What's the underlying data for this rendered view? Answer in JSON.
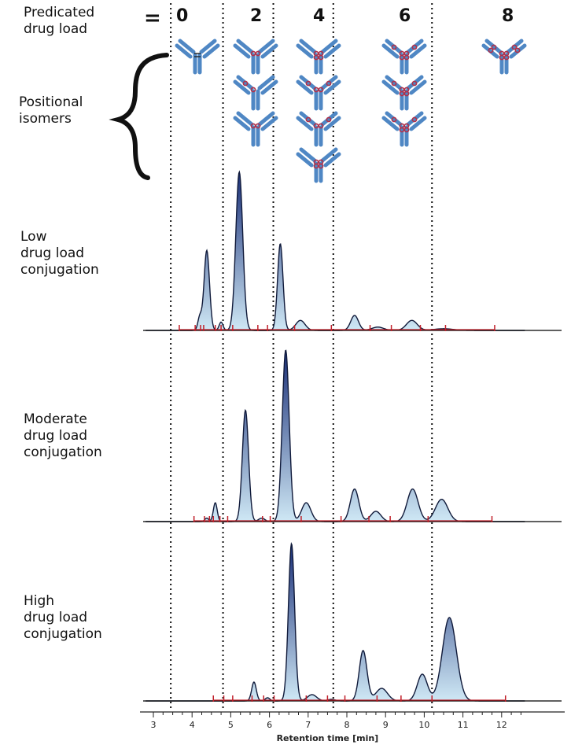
{
  "header": {
    "predicated_label": "Predicated\ndrug load",
    "equals": "=",
    "drug_loads": [
      "0",
      "2",
      "4",
      "6",
      "8"
    ]
  },
  "positional_label": "Positional\nisomers",
  "isomer_counts": [
    1,
    3,
    4,
    3,
    1
  ],
  "colors": {
    "antibody": "#4f87c4",
    "drug_linker": "#b0304a",
    "peak_fill_dark": "#1a2f78",
    "peak_fill_light": "#cfe8f5",
    "integration_marks": "#c0202a",
    "baseline": "#000000"
  },
  "chart_data": {
    "type": "area",
    "xlabel": "Retention time [min]",
    "xlim": [
      2.8,
      12.6
    ],
    "ticks": [
      "3",
      "4",
      "5",
      "6",
      "7",
      "8",
      "9",
      "10",
      "11",
      "12"
    ],
    "dar_boundaries": [
      3.45,
      4.8,
      6.1,
      7.65,
      10.2
    ],
    "panels": [
      {
        "label": "Low\ndrug load\nconjugation",
        "peaks": [
          {
            "x": 4.2,
            "height": 0.08,
            "width": 0.05
          },
          {
            "x": 4.38,
            "height": 0.48,
            "width": 0.07
          },
          {
            "x": 4.75,
            "height": 0.05,
            "width": 0.05
          },
          {
            "x": 5.22,
            "height": 0.95,
            "width": 0.09
          },
          {
            "x": 6.28,
            "height": 0.52,
            "width": 0.07
          },
          {
            "x": 6.8,
            "height": 0.06,
            "width": 0.12
          },
          {
            "x": 8.2,
            "height": 0.09,
            "width": 0.1
          },
          {
            "x": 8.8,
            "height": 0.02,
            "width": 0.15
          },
          {
            "x": 9.68,
            "height": 0.06,
            "width": 0.14
          },
          {
            "x": 10.5,
            "height": 0.01,
            "width": 0.25
          }
        ],
        "marks": [
          3.67,
          4.08,
          4.22,
          4.3,
          4.6,
          4.75,
          5.05,
          5.7,
          5.95,
          6.65,
          7.6,
          8.6,
          9.15,
          9.9,
          10.55,
          11.82
        ]
      },
      {
        "label": "Moderate\ndrug load\nconjugation",
        "peaks": [
          {
            "x": 4.38,
            "height": 0.02,
            "width": 0.05
          },
          {
            "x": 4.6,
            "height": 0.11,
            "width": 0.05
          },
          {
            "x": 5.38,
            "height": 0.65,
            "width": 0.08
          },
          {
            "x": 5.8,
            "height": 0.02,
            "width": 0.08
          },
          {
            "x": 6.42,
            "height": 1.0,
            "width": 0.09
          },
          {
            "x": 6.95,
            "height": 0.11,
            "width": 0.12
          },
          {
            "x": 8.2,
            "height": 0.19,
            "width": 0.11
          },
          {
            "x": 8.75,
            "height": 0.06,
            "width": 0.13
          },
          {
            "x": 9.7,
            "height": 0.19,
            "width": 0.14
          },
          {
            "x": 10.45,
            "height": 0.13,
            "width": 0.16
          }
        ],
        "marks": [
          4.05,
          4.32,
          4.45,
          4.55,
          4.72,
          4.92,
          5.82,
          6.02,
          6.82,
          7.85,
          8.57,
          9.12,
          10.1,
          11.75
        ]
      },
      {
        "label": "High\ndrug load\nconjugation",
        "peaks": [
          {
            "x": 5.6,
            "height": 0.12,
            "width": 0.06
          },
          {
            "x": 5.95,
            "height": 0.02,
            "width": 0.06
          },
          {
            "x": 6.57,
            "height": 1.0,
            "width": 0.08
          },
          {
            "x": 7.1,
            "height": 0.04,
            "width": 0.12
          },
          {
            "x": 7.6,
            "height": 0.01,
            "width": 0.1
          },
          {
            "x": 8.42,
            "height": 0.32,
            "width": 0.1
          },
          {
            "x": 8.9,
            "height": 0.08,
            "width": 0.15
          },
          {
            "x": 9.95,
            "height": 0.17,
            "width": 0.13
          },
          {
            "x": 10.65,
            "height": 0.53,
            "width": 0.18
          }
        ],
        "marks": [
          4.55,
          4.82,
          5.05,
          5.55,
          5.85,
          6.12,
          6.95,
          7.5,
          7.95,
          8.78,
          9.4,
          10.2,
          12.1
        ]
      }
    ]
  }
}
